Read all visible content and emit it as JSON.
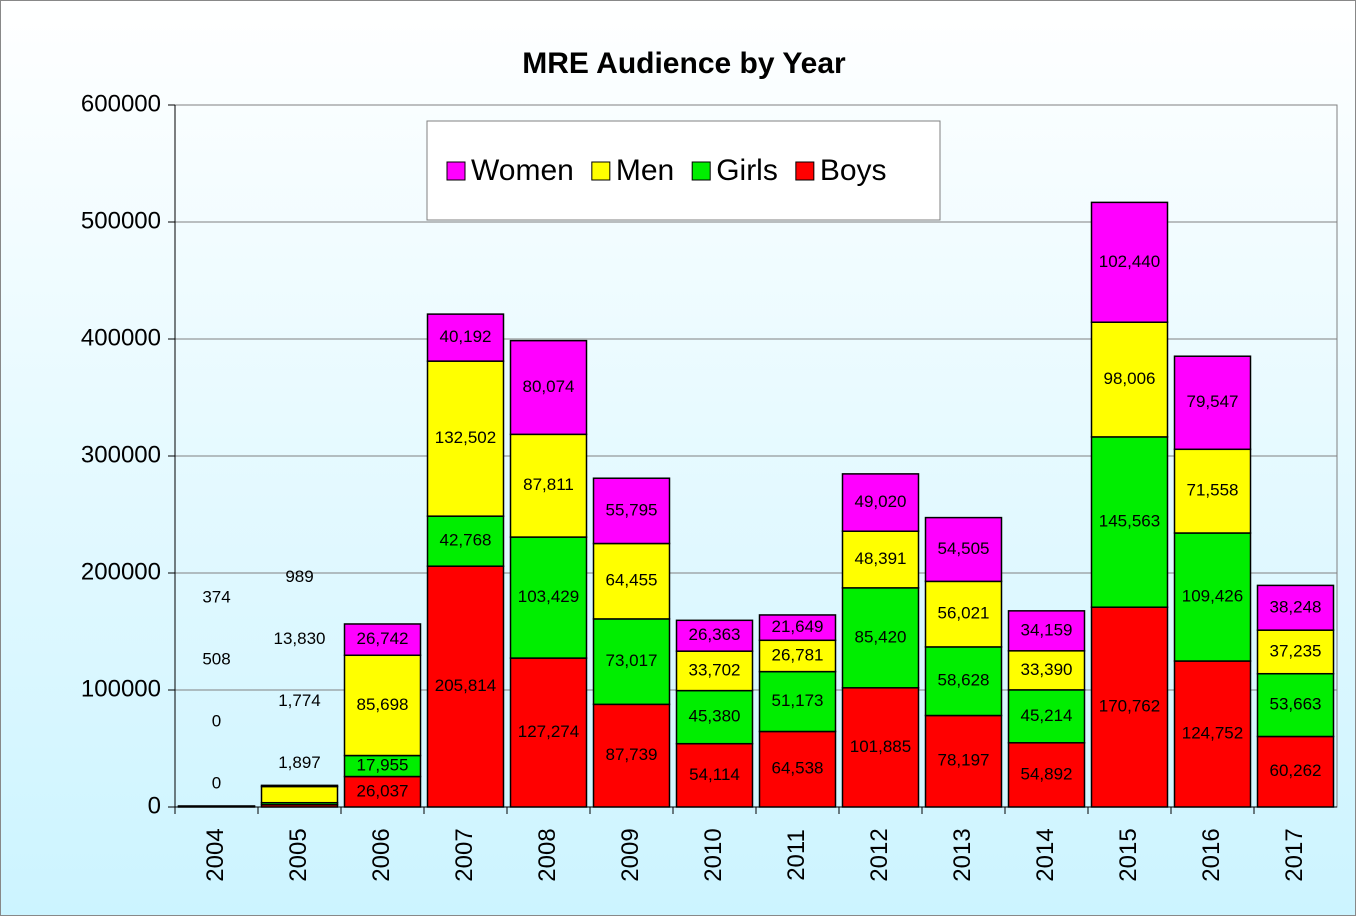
{
  "chart_data": {
    "type": "stacked_bar",
    "title": "MRE Audience by Year",
    "categories": [
      "2004",
      "2005",
      "2006",
      "2007",
      "2008",
      "2009",
      "2010",
      "2011",
      "2012",
      "2013",
      "2014",
      "2015",
      "2016",
      "2017"
    ],
    "series": [
      {
        "name": "Boys",
        "color": "#ff0000",
        "values": [
          0,
          1897,
          26037,
          205814,
          127274,
          87739,
          54114,
          64538,
          101885,
          78197,
          54892,
          170762,
          124752,
          60262
        ],
        "value_labels": [
          "0",
          "1,897",
          "26,037",
          "205,814",
          "127,274",
          "87,739",
          "54,114",
          "64,538",
          "101,885",
          "78,197",
          "54,892",
          "170,762",
          "124,752",
          "60,262"
        ]
      },
      {
        "name": "Girls",
        "color": "#00ee00",
        "values": [
          0,
          1774,
          17955,
          42768,
          103429,
          73017,
          45380,
          51173,
          85420,
          58628,
          45214,
          145563,
          109426,
          53663
        ],
        "value_labels": [
          "0",
          "1,774",
          "17,955",
          "42,768",
          "103,429",
          "73,017",
          "45,380",
          "51,173",
          "85,420",
          "58,628",
          "45,214",
          "145,563",
          "109,426",
          "53,663"
        ]
      },
      {
        "name": "Men",
        "color": "#ffff00",
        "values": [
          508,
          13830,
          85698,
          132502,
          87811,
          64455,
          33702,
          26781,
          48391,
          56021,
          33390,
          98006,
          71558,
          37235
        ],
        "value_labels": [
          "508",
          "13,830",
          "85,698",
          "132,502",
          "87,811",
          "64,455",
          "33,702",
          "26,781",
          "48,391",
          "56,021",
          "33,390",
          "98,006",
          "71,558",
          "37,235"
        ]
      },
      {
        "name": "Women",
        "color": "#ff00ff",
        "values": [
          374,
          989,
          26742,
          40192,
          80074,
          55795,
          26363,
          21649,
          49020,
          54505,
          34159,
          102440,
          79547,
          38248
        ],
        "value_labels": [
          "374",
          "989",
          "26,742",
          "40,192",
          "80,074",
          "55,795",
          "26,363",
          "21,649",
          "49,020",
          "54,505",
          "34,159",
          "102,440",
          "79,547",
          "38,248"
        ]
      }
    ],
    "ylim": [
      0,
      600000
    ],
    "yticks": [
      0,
      100000,
      200000,
      300000,
      400000,
      500000,
      600000
    ],
    "grid": true,
    "legend": "top"
  }
}
